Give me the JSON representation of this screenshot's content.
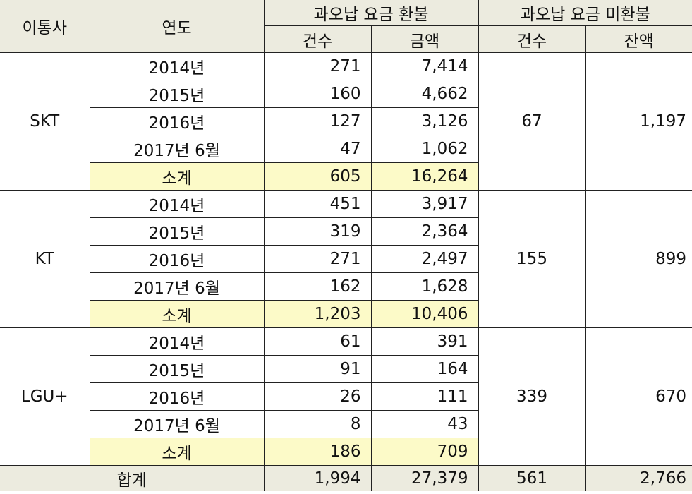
{
  "headers": {
    "carrier": "이통사",
    "year": "연도",
    "refund": "과오납 요금 환불",
    "unrefunded": "과오납 요금 미환불",
    "count": "건수",
    "amount": "금액",
    "count2": "건수",
    "balance": "잔액"
  },
  "carriers": [
    {
      "name": "SKT",
      "rows": [
        {
          "year": "2014년",
          "count": "271",
          "amount": "7,414"
        },
        {
          "year": "2015년",
          "count": "160",
          "amount": "4,662"
        },
        {
          "year": "2016년",
          "count": "127",
          "amount": "3,126"
        },
        {
          "year": "2017년 6월",
          "count": "47",
          "amount": "1,062"
        },
        {
          "year": "소계",
          "count": "605",
          "amount": "16,264"
        }
      ],
      "unrefunded_count": "67",
      "unrefunded_balance": "1,197"
    },
    {
      "name": "KT",
      "rows": [
        {
          "year": "2014년",
          "count": "451",
          "amount": "3,917"
        },
        {
          "year": "2015년",
          "count": "319",
          "amount": "2,364"
        },
        {
          "year": "2016년",
          "count": "271",
          "amount": "2,497"
        },
        {
          "year": "2017년 6월",
          "count": "162",
          "amount": "1,628"
        },
        {
          "year": "소계",
          "count": "1,203",
          "amount": "10,406"
        }
      ],
      "unrefunded_count": "155",
      "unrefunded_balance": "899"
    },
    {
      "name": "LGU+",
      "rows": [
        {
          "year": "2014년",
          "count": "61",
          "amount": "391"
        },
        {
          "year": "2015년",
          "count": "91",
          "amount": "164"
        },
        {
          "year": "2016년",
          "count": "26",
          "amount": "111"
        },
        {
          "year": "2017년 6월",
          "count": "8",
          "amount": "43"
        },
        {
          "year": "소계",
          "count": "186",
          "amount": "709"
        }
      ],
      "unrefunded_count": "339",
      "unrefunded_balance": "670"
    }
  ],
  "total": {
    "label": "합계",
    "count": "1,994",
    "amount": "27,379",
    "unrefunded_count": "561",
    "unrefunded_balance": "2,766"
  },
  "colors": {
    "header_bg": "#ecebdf",
    "subtotal_bg": "#fcfac8"
  }
}
